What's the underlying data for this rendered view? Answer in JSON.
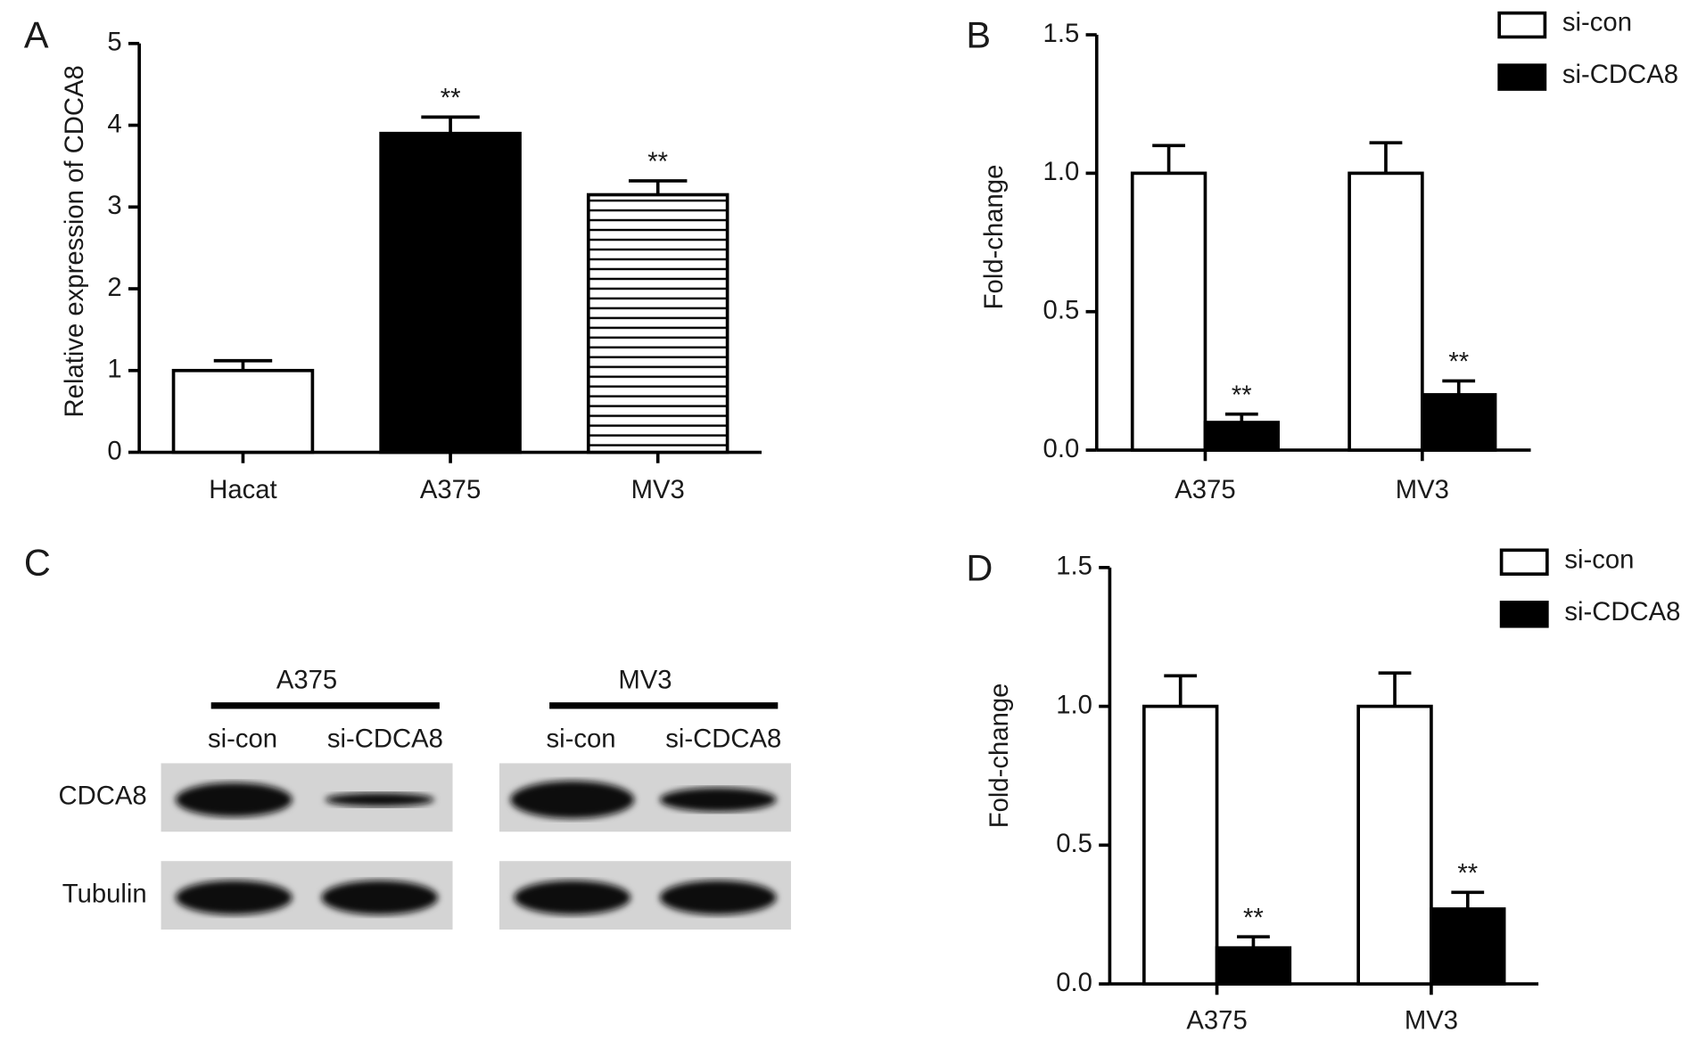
{
  "chart_data": [
    {
      "type": "bar",
      "panel": "A",
      "ylabel": "Relative expression of CDCA8",
      "categories": [
        "Hacat",
        "A375",
        "MV3"
      ],
      "values": [
        1.0,
        3.9,
        3.15
      ],
      "errors": [
        0.12,
        0.2,
        0.17
      ],
      "significance": [
        null,
        "**",
        "**"
      ],
      "fills": [
        "#ffffff",
        "#000000",
        "#ffffff"
      ],
      "hatch": [
        false,
        false,
        true
      ],
      "ylim": [
        0,
        5
      ],
      "yticks": [
        0,
        1,
        2,
        3,
        4,
        5
      ]
    },
    {
      "type": "grouped_bar",
      "panel": "B",
      "ylabel": "Fold-change",
      "categories": [
        "A375",
        "MV3"
      ],
      "series": [
        {
          "name": "si-con",
          "color": "#ffffff",
          "values": [
            1.0,
            1.0
          ],
          "errors": [
            0.1,
            0.11
          ],
          "significance": [
            null,
            null
          ]
        },
        {
          "name": "si-CDCA8",
          "color": "#000000",
          "values": [
            0.1,
            0.2
          ],
          "errors": [
            0.03,
            0.05
          ],
          "significance": [
            "**",
            "**"
          ]
        }
      ],
      "legend": "upper right",
      "ylim": [
        0,
        1.5
      ],
      "yticks": [
        {
          "value": 0,
          "label": "0.0"
        },
        0.5,
        {
          "value": 1,
          "label": "1.0"
        },
        1.5
      ]
    },
    {
      "type": "grouped_bar",
      "panel": "D",
      "ylabel": "Fold-change",
      "categories": [
        "A375",
        "MV3"
      ],
      "series": [
        {
          "name": "si-con",
          "color": "#ffffff",
          "values": [
            1.0,
            1.0
          ],
          "errors": [
            0.11,
            0.12
          ],
          "significance": [
            null,
            null
          ]
        },
        {
          "name": "si-CDCA8",
          "color": "#000000",
          "values": [
            0.13,
            0.27
          ],
          "errors": [
            0.04,
            0.06
          ],
          "significance": [
            "**",
            "**"
          ]
        }
      ],
      "legend": "upper right",
      "ylim": [
        0,
        1.5
      ],
      "yticks": [
        {
          "value": 0,
          "label": "0.0"
        },
        0.5,
        {
          "value": 1,
          "label": "1.0"
        },
        1.5
      ]
    }
  ],
  "blot": {
    "panel": "C",
    "groups": [
      {
        "label": "A375",
        "lanes": [
          "si-con",
          "si-CDCA8"
        ]
      },
      {
        "label": "MV3",
        "lanes": [
          "si-con",
          "si-CDCA8"
        ]
      }
    ],
    "rows": [
      "CDCA8",
      "Tubulin"
    ]
  }
}
